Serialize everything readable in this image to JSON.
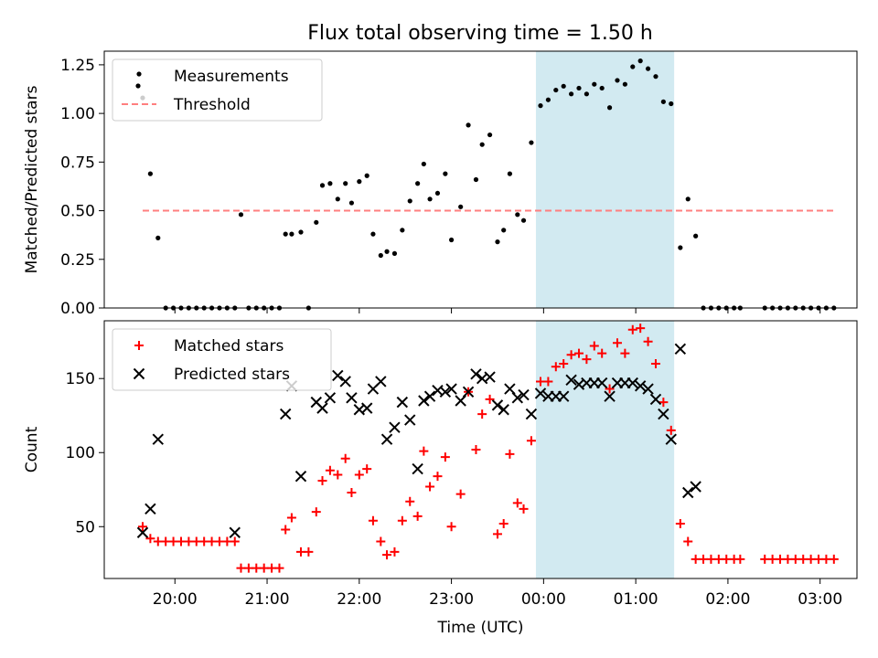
{
  "chart_data": [
    {
      "type": "scatter",
      "title": "Flux total observing time = 1.50 h",
      "xlabel": "",
      "ylabel": "Matched/Predicted stars",
      "ylim": [
        0,
        1.32
      ],
      "yticks": [
        "0.00",
        "0.25",
        "0.50",
        "0.75",
        "1.00",
        "1.25"
      ],
      "legend": "top-left",
      "highlight_span": {
        "start": 235.0,
        "end": 325.0,
        "color": "#add8e6"
      },
      "series": [
        {
          "name": "Measurements",
          "marker": "dot",
          "color": "#000000",
          "points": [
            [
              -21,
              1.08
            ],
            [
              -16,
              0.69
            ],
            [
              -11,
              0.36
            ],
            [
              -6,
              0
            ],
            [
              -1,
              0
            ],
            [
              4,
              0
            ],
            [
              9,
              0
            ],
            [
              14,
              0
            ],
            [
              19,
              0
            ],
            [
              24,
              0
            ],
            [
              29,
              0
            ],
            [
              34,
              0
            ],
            [
              39,
              0
            ],
            [
              43,
              0.48
            ],
            [
              48,
              0
            ],
            [
              53,
              0
            ],
            [
              58,
              0
            ],
            [
              63,
              0
            ],
            [
              68,
              0
            ],
            [
              72,
              0.38
            ],
            [
              76,
              0.38
            ],
            [
              82,
              0.39
            ],
            [
              87,
              0
            ],
            [
              92,
              0.44
            ],
            [
              96,
              0.63
            ],
            [
              101,
              0.64
            ],
            [
              106,
              0.56
            ],
            [
              111,
              0.64
            ],
            [
              115,
              0.54
            ],
            [
              120,
              0.65
            ],
            [
              125,
              0.68
            ],
            [
              129,
              0.38
            ],
            [
              134,
              0.27
            ],
            [
              138,
              0.29
            ],
            [
              143,
              0.28
            ],
            [
              148,
              0.4
            ],
            [
              153,
              0.55
            ],
            [
              158,
              0.64
            ],
            [
              162,
              0.74
            ],
            [
              166,
              0.56
            ],
            [
              171,
              0.59
            ],
            [
              176,
              0.69
            ],
            [
              180,
              0.35
            ],
            [
              186,
              0.52
            ],
            [
              191,
              0.94
            ],
            [
              196,
              0.66
            ],
            [
              200,
              0.84
            ],
            [
              205,
              0.89
            ],
            [
              210,
              0.34
            ],
            [
              214,
              0.4
            ],
            [
              218,
              0.69
            ],
            [
              223,
              0.48
            ],
            [
              227,
              0.45
            ],
            [
              232,
              0.85
            ],
            [
              238,
              1.04
            ],
            [
              243,
              1.07
            ],
            [
              248,
              1.12
            ],
            [
              253,
              1.14
            ],
            [
              258,
              1.1
            ],
            [
              263,
              1.13
            ],
            [
              268,
              1.1
            ],
            [
              273,
              1.15
            ],
            [
              278,
              1.13
            ],
            [
              283,
              1.03
            ],
            [
              288,
              1.17
            ],
            [
              293,
              1.15
            ],
            [
              298,
              1.24
            ],
            [
              303,
              1.27
            ],
            [
              308,
              1.23
            ],
            [
              313,
              1.19
            ],
            [
              318,
              1.06
            ],
            [
              323,
              1.05
            ],
            [
              329,
              0.31
            ],
            [
              334,
              0.56
            ],
            [
              339,
              0.37
            ],
            [
              344,
              0
            ],
            [
              349,
              0
            ],
            [
              354,
              0
            ],
            [
              359,
              0
            ],
            [
              364,
              0
            ],
            [
              368,
              0
            ],
            [
              384,
              0
            ],
            [
              389,
              0
            ],
            [
              394,
              0
            ],
            [
              399,
              0
            ],
            [
              404,
              0
            ],
            [
              409,
              0
            ],
            [
              414,
              0
            ],
            [
              419,
              0
            ],
            [
              424,
              0
            ],
            [
              429,
              0
            ]
          ]
        },
        {
          "name": "Threshold",
          "marker": "dashed-line",
          "color": "#ff7f7f",
          "x": [
            -21,
            430
          ],
          "y": [
            0.5,
            0.5
          ]
        }
      ]
    },
    {
      "type": "scatter",
      "title": "",
      "xlabel": "Time (UTC)",
      "ylabel": "Count",
      "ylim": [
        15,
        189
      ],
      "yticks": [
        "50",
        "100",
        "150"
      ],
      "xlim": [
        -46,
        444
      ],
      "xticks": [
        {
          "value": 0,
          "label": "20:00"
        },
        {
          "value": 60,
          "label": "21:00"
        },
        {
          "value": 120,
          "label": "22:00"
        },
        {
          "value": 180,
          "label": "23:00"
        },
        {
          "value": 240,
          "label": "00:00"
        },
        {
          "value": 300,
          "label": "01:00"
        },
        {
          "value": 360,
          "label": "02:00"
        },
        {
          "value": 420,
          "label": "03:00"
        }
      ],
      "legend": "top-left",
      "highlight_span": {
        "start": 235.0,
        "end": 325.0,
        "color": "#add8e6"
      },
      "series": [
        {
          "name": "Matched stars",
          "marker": "plus",
          "color": "#ff0000",
          "points": [
            [
              -21,
              50
            ],
            [
              -16,
              42
            ],
            [
              -11,
              40
            ],
            [
              -6,
              40
            ],
            [
              -1,
              40
            ],
            [
              4,
              40
            ],
            [
              9,
              40
            ],
            [
              14,
              40
            ],
            [
              19,
              40
            ],
            [
              24,
              40
            ],
            [
              29,
              40
            ],
            [
              34,
              40
            ],
            [
              39,
              40
            ],
            [
              43,
              22
            ],
            [
              48,
              22
            ],
            [
              53,
              22
            ],
            [
              58,
              22
            ],
            [
              63,
              22
            ],
            [
              68,
              22
            ],
            [
              72,
              48
            ],
            [
              76,
              56
            ],
            [
              82,
              33
            ],
            [
              87,
              33
            ],
            [
              92,
              60
            ],
            [
              96,
              81
            ],
            [
              101,
              88
            ],
            [
              106,
              85
            ],
            [
              111,
              96
            ],
            [
              115,
              73
            ],
            [
              120,
              85
            ],
            [
              125,
              89
            ],
            [
              129,
              54
            ],
            [
              134,
              40
            ],
            [
              138,
              31
            ],
            [
              143,
              33
            ],
            [
              148,
              54
            ],
            [
              153,
              67
            ],
            [
              158,
              57
            ],
            [
              162,
              101
            ],
            [
              166,
              77
            ],
            [
              171,
              84
            ],
            [
              176,
              97
            ],
            [
              180,
              50
            ],
            [
              186,
              72
            ],
            [
              191,
              141
            ],
            [
              196,
              102
            ],
            [
              200,
              126
            ],
            [
              205,
              136
            ],
            [
              210,
              45
            ],
            [
              214,
              52
            ],
            [
              218,
              99
            ],
            [
              223,
              66
            ],
            [
              227,
              62
            ],
            [
              232,
              108
            ],
            [
              238,
              148
            ],
            [
              243,
              148
            ],
            [
              248,
              158
            ],
            [
              253,
              160
            ],
            [
              258,
              166
            ],
            [
              263,
              167
            ],
            [
              268,
              163
            ],
            [
              273,
              172
            ],
            [
              278,
              167
            ],
            [
              283,
              143
            ],
            [
              288,
              174
            ],
            [
              293,
              167
            ],
            [
              298,
              183
            ],
            [
              303,
              184
            ],
            [
              308,
              175
            ],
            [
              313,
              160
            ],
            [
              318,
              134
            ],
            [
              323,
              115
            ],
            [
              329,
              52
            ],
            [
              334,
              40
            ],
            [
              339,
              28
            ],
            [
              344,
              28
            ],
            [
              349,
              28
            ],
            [
              354,
              28
            ],
            [
              359,
              28
            ],
            [
              364,
              28
            ],
            [
              368,
              28
            ],
            [
              384,
              28
            ],
            [
              389,
              28
            ],
            [
              394,
              28
            ],
            [
              399,
              28
            ],
            [
              404,
              28
            ],
            [
              409,
              28
            ],
            [
              414,
              28
            ],
            [
              419,
              28
            ],
            [
              424,
              28
            ],
            [
              429,
              28
            ]
          ]
        },
        {
          "name": "Predicted stars",
          "marker": "x",
          "color": "#000000",
          "points": [
            [
              -21,
              46
            ],
            [
              -16,
              62
            ],
            [
              -11,
              109
            ],
            [
              39,
              46
            ],
            [
              72,
              126
            ],
            [
              76,
              145
            ],
            [
              82,
              84
            ],
            [
              92,
              134
            ],
            [
              96,
              130
            ],
            [
              101,
              137
            ],
            [
              106,
              152
            ],
            [
              111,
              148
            ],
            [
              115,
              137
            ],
            [
              120,
              129
            ],
            [
              125,
              130
            ],
            [
              129,
              143
            ],
            [
              134,
              148
            ],
            [
              138,
              109
            ],
            [
              143,
              117
            ],
            [
              148,
              134
            ],
            [
              153,
              122
            ],
            [
              158,
              89
            ],
            [
              162,
              135
            ],
            [
              166,
              138
            ],
            [
              171,
              142
            ],
            [
              176,
              141
            ],
            [
              180,
              143
            ],
            [
              186,
              135
            ],
            [
              191,
              141
            ],
            [
              196,
              153
            ],
            [
              200,
              150
            ],
            [
              205,
              151
            ],
            [
              210,
              132
            ],
            [
              214,
              129
            ],
            [
              218,
              143
            ],
            [
              223,
              137
            ],
            [
              227,
              139
            ],
            [
              232,
              126
            ],
            [
              238,
              140
            ],
            [
              243,
              138
            ],
            [
              248,
              138
            ],
            [
              253,
              138
            ],
            [
              258,
              149
            ],
            [
              263,
              146
            ],
            [
              268,
              147
            ],
            [
              273,
              147
            ],
            [
              278,
              147
            ],
            [
              283,
              138
            ],
            [
              288,
              147
            ],
            [
              293,
              147
            ],
            [
              298,
              147
            ],
            [
              303,
              145
            ],
            [
              308,
              143
            ],
            [
              313,
              136
            ],
            [
              318,
              126
            ],
            [
              323,
              109
            ],
            [
              329,
              170
            ],
            [
              334,
              73
            ],
            [
              339,
              77
            ]
          ]
        }
      ]
    }
  ]
}
